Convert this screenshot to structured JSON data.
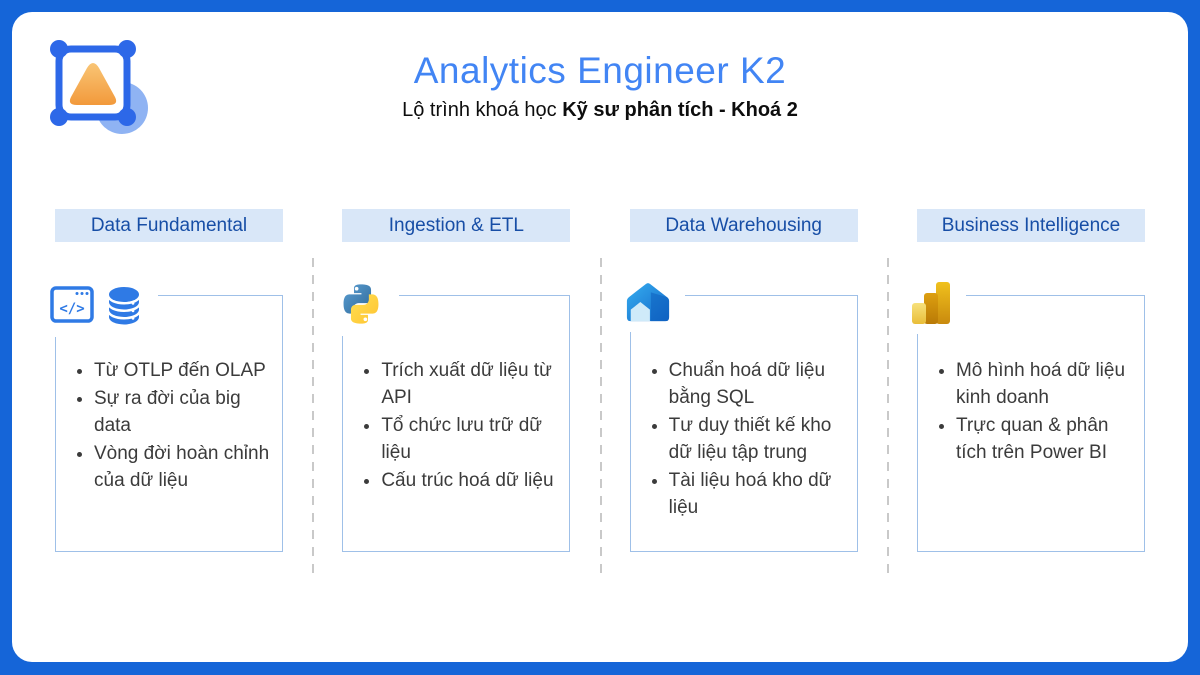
{
  "header": {
    "title": "Analytics Engineer K2",
    "subtitle_prefix": "Lộ trình khoá học ",
    "subtitle_bold": "Kỹ sư phân tích - Khoá 2"
  },
  "columns": [
    {
      "label": "Data Fundamental",
      "icons": [
        "code-window-icon",
        "database-icon"
      ],
      "bullets": [
        "Từ OTLP đến OLAP",
        "Sự ra đời của big data",
        "Vòng đời hoàn chỉnh của dữ liệu"
      ]
    },
    {
      "label": "Ingestion & ETL",
      "icons": [
        "python-icon"
      ],
      "bullets": [
        "Trích xuất dữ liệu từ API",
        "Tổ chức lưu trữ dữ liệu",
        "Cấu trúc hoá dữ liệu"
      ]
    },
    {
      "label": "Data Warehousing",
      "icons": [
        "warehouse-icon"
      ],
      "bullets": [
        "Chuẩn hoá dữ liệu bằng SQL",
        "Tư duy thiết kế kho dữ liệu tập trung",
        "Tài liệu hoá kho dữ liệu"
      ]
    },
    {
      "label": "Business Intelligence",
      "icons": [
        "power-bi-icon"
      ],
      "bullets": [
        "Mô hình hoá dữ liệu kinh doanh",
        "Trực quan & phân tích trên Power BI"
      ]
    }
  ],
  "colors": {
    "frame_blue": "#1565D8",
    "title_blue": "#4285F4",
    "pill_bg": "#D9E7F8",
    "pill_text": "#174EA6",
    "card_border": "#9FC0E8",
    "bullet_text": "#3B3B3B",
    "divider": "#C9C9C9",
    "icon_blue": "#2F7AE5"
  }
}
